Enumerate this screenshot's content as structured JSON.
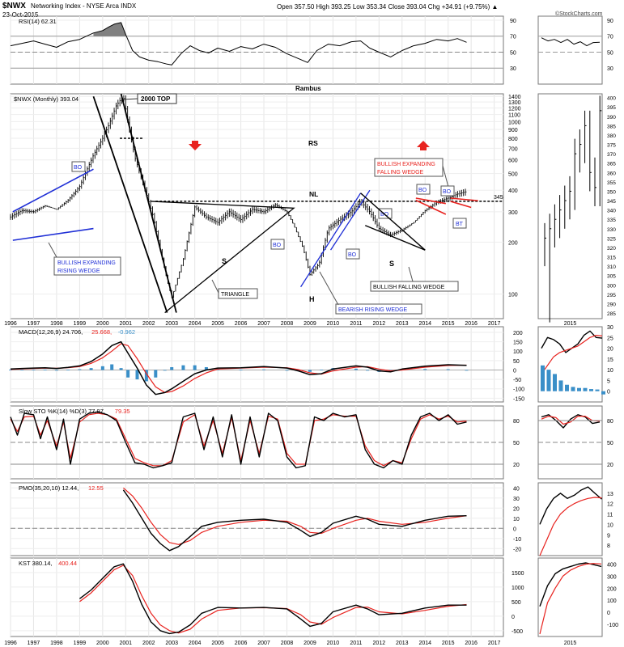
{
  "header": {
    "symbol": "$NWX",
    "name": "Networking Index - NYSE Arca INDX",
    "date": "23-Oct-2015",
    "quote": "Open 357.50  High 393.25  Low 353.34  Close 393.04  Chg +34.91 (+9.75%) ▲",
    "logo": "©StockCharts.com"
  },
  "author": "Rambus",
  "x_axis": {
    "labels": [
      "1996",
      "1997",
      "1998",
      "1999",
      "2000",
      "2001",
      "2002",
      "2003",
      "2004",
      "2005",
      "2006",
      "2007",
      "2008",
      "2009",
      "2010",
      "2011",
      "2012",
      "2013",
      "2014",
      "2015",
      "2016",
      "2017"
    ]
  },
  "right_axis_label": "2015",
  "colors": {
    "price": "#000000",
    "signal": "#e8231f",
    "histogram": "#3a8fc8",
    "blue_line": "#1f2fd6",
    "red_line": "#e8231f",
    "pattern": "#000000",
    "rsi_fill": "#808080"
  },
  "chart_data": [
    {
      "panel": "rsi",
      "type": "line",
      "legend": "RSI(14) 62.31",
      "y_ticks": [
        "90",
        "70",
        "50",
        "30"
      ],
      "ylim": [
        10,
        95
      ],
      "guides": [
        70,
        50,
        30
      ],
      "x": [
        1996.0,
        1996.5,
        1997.0,
        1997.5,
        1998.0,
        1998.5,
        1999.0,
        1999.3,
        1999.6,
        2000.0,
        2000.3,
        2000.5,
        2000.8,
        2001.0,
        2001.3,
        2001.6,
        2002.0,
        2002.4,
        2002.8,
        2003.0,
        2003.4,
        2003.8,
        2004.2,
        2004.6,
        2005.0,
        2005.5,
        2006.0,
        2006.5,
        2007.0,
        2007.5,
        2008.0,
        2008.5,
        2008.9,
        2009.3,
        2009.8,
        2010.3,
        2010.8,
        2011.2,
        2011.6,
        2012.0,
        2012.5,
        2013.0,
        2013.5,
        2014.0,
        2014.5,
        2015.0,
        2015.4,
        2015.8
      ],
      "values": [
        58,
        61,
        64,
        60,
        56,
        63,
        66,
        70,
        74,
        77,
        82,
        85,
        87,
        72,
        52,
        44,
        40,
        38,
        35,
        34,
        48,
        58,
        52,
        49,
        55,
        51,
        57,
        54,
        60,
        56,
        48,
        42,
        37,
        52,
        60,
        58,
        63,
        64,
        55,
        50,
        44,
        52,
        58,
        61,
        66,
        64,
        67,
        62.31
      ]
    },
    {
      "panel": "price",
      "type": "ohlc",
      "legend": "$NWX (Monthly) 393.04",
      "scale": "log",
      "ylim": [
        72,
        1450
      ],
      "y_ticks": [
        "1400",
        "1300",
        "1200",
        "1100",
        "1000",
        "900",
        "800",
        "700",
        "600",
        "500",
        "400",
        "300",
        "200",
        "100"
      ],
      "x": [
        1996.0,
        1996.5,
        1997.0,
        1997.5,
        1998.0,
        1998.5,
        1999.0,
        1999.3,
        1999.6,
        2000.0,
        2000.3,
        2000.6,
        2000.9,
        2001.1,
        2001.4,
        2001.8,
        2002.2,
        2002.5,
        2002.8,
        2003.0,
        2003.5,
        2004.0,
        2004.5,
        2005.0,
        2005.5,
        2006.0,
        2006.5,
        2007.0,
        2007.5,
        2008.0,
        2008.3,
        2008.7,
        2009.0,
        2009.4,
        2009.8,
        2010.3,
        2010.8,
        2011.2,
        2011.6,
        2012.0,
        2012.5,
        2013.0,
        2013.5,
        2014.0,
        2014.5,
        2015.0,
        2015.4,
        2015.8
      ],
      "values": [
        280,
        305,
        300,
        325,
        310,
        350,
        420,
        520,
        640,
        800,
        980,
        1250,
        1400,
        1000,
        620,
        420,
        280,
        180,
        120,
        95,
        160,
        320,
        280,
        260,
        300,
        270,
        310,
        300,
        330,
        300,
        250,
        185,
        130,
        150,
        240,
        270,
        300,
        345,
        300,
        240,
        220,
        235,
        260,
        305,
        340,
        360,
        380,
        393.04
      ]
    },
    {
      "panel": "price_right",
      "type": "ohlc",
      "x_label": "2015",
      "y_ticks": [
        "400",
        "395",
        "390",
        "385",
        "380",
        "375",
        "370",
        "365",
        "360",
        "355",
        "350",
        "345",
        "340",
        "335",
        "330",
        "325",
        "320",
        "315",
        "310",
        "305",
        "300",
        "295",
        "290",
        "285"
      ],
      "ylim": [
        282,
        402
      ],
      "x": [
        0,
        1,
        2,
        3,
        4,
        5,
        6,
        7,
        8,
        9,
        10,
        11
      ],
      "values": [
        325,
        330,
        335,
        340,
        345,
        350,
        370,
        375,
        385,
        360,
        352,
        393
      ]
    },
    {
      "panel": "macd",
      "type": "line",
      "legend": "MACD(12,26,9) 24.706, 25.668, -0.962",
      "legend_parts": [
        "MACD(12,26,9) 24.706,",
        "25.668,",
        "-0.962"
      ],
      "y_ticks": [
        "200",
        "150",
        "100",
        "50",
        "0",
        "-50",
        "-100",
        "-150"
      ],
      "ylim": [
        -170,
        230
      ],
      "x": [
        1996.0,
        1996.5,
        1997.0,
        1997.5,
        1998.0,
        1998.5,
        1999.0,
        1999.5,
        2000.0,
        2000.4,
        2000.8,
        2001.1,
        2001.5,
        2001.9,
        2002.3,
        2002.7,
        2003.0,
        2003.5,
        2004.0,
        2004.5,
        2005.0,
        2006.0,
        2007.0,
        2008.0,
        2008.5,
        2009.0,
        2009.5,
        2010.0,
        2011.0,
        2011.5,
        2012.0,
        2012.5,
        2013.0,
        2014.0,
        2015.0,
        2015.8
      ],
      "values": [
        5,
        8,
        10,
        12,
        8,
        14,
        22,
        45,
        85,
        130,
        150,
        90,
        10,
        -80,
        -130,
        -120,
        -100,
        -60,
        -20,
        0,
        10,
        12,
        18,
        10,
        -5,
        -25,
        -20,
        5,
        22,
        15,
        -5,
        -10,
        5,
        20,
        28,
        24.706
      ],
      "signal": [
        3,
        6,
        8,
        10,
        9,
        12,
        18,
        35,
        65,
        100,
        140,
        130,
        60,
        -20,
        -90,
        -120,
        -115,
        -85,
        -45,
        -15,
        5,
        10,
        15,
        12,
        2,
        -15,
        -22,
        -5,
        15,
        18,
        5,
        -5,
        0,
        15,
        24,
        25.668
      ]
    },
    {
      "panel": "stoch",
      "type": "line",
      "legend": "Slow STO %K(14) %D(3) 77.97, 79.35",
      "legend_parts": [
        "Slow STO %K(14) %D(3) 77.97,",
        "79.35"
      ],
      "y_ticks": [
        "80",
        "50",
        "20"
      ],
      "ylim": [
        0,
        100
      ],
      "guides": [
        80,
        50,
        20
      ],
      "x": [
        1996.0,
        1996.3,
        1996.6,
        1997.0,
        1997.3,
        1997.6,
        1998.0,
        1998.3,
        1998.6,
        1999.0,
        1999.4,
        1999.8,
        2000.2,
        2000.6,
        2001.0,
        2001.4,
        2001.8,
        2002.2,
        2002.6,
        2003.0,
        2003.5,
        2004.0,
        2004.4,
        2004.8,
        2005.2,
        2005.6,
        2006.0,
        2006.4,
        2006.8,
        2007.2,
        2007.6,
        2008.0,
        2008.4,
        2008.8,
        2009.2,
        2009.6,
        2010.0,
        2010.5,
        2011.0,
        2011.4,
        2011.8,
        2012.2,
        2012.6,
        2013.0,
        2013.4,
        2013.8,
        2014.2,
        2014.6,
        2015.0,
        2015.4,
        2015.8
      ],
      "values": [
        85,
        60,
        90,
        88,
        55,
        85,
        40,
        82,
        20,
        82,
        90,
        92,
        88,
        80,
        50,
        22,
        20,
        15,
        18,
        22,
        85,
        90,
        40,
        85,
        30,
        88,
        20,
        85,
        30,
        90,
        80,
        30,
        15,
        18,
        85,
        80,
        90,
        85,
        88,
        40,
        20,
        15,
        25,
        20,
        60,
        85,
        90,
        80,
        88,
        75,
        77.97
      ],
      "signal": [
        82,
        65,
        85,
        86,
        60,
        80,
        45,
        78,
        28,
        78,
        88,
        90,
        88,
        82,
        55,
        28,
        22,
        18,
        18,
        25,
        78,
        88,
        45,
        80,
        35,
        84,
        25,
        80,
        35,
        86,
        82,
        35,
        20,
        20,
        80,
        82,
        88,
        86,
        86,
        45,
        25,
        18,
        25,
        22,
        55,
        82,
        88,
        82,
        86,
        78,
        79.35
      ]
    },
    {
      "panel": "pmo",
      "type": "line",
      "legend": "PMO(35,20,10) 12.44, 12.55",
      "legend_parts": [
        "PMO(35,20,10) 12.44,",
        "12.55"
      ],
      "y_ticks": [
        "40",
        "30",
        "20",
        "10",
        "0",
        "-10",
        "-20"
      ],
      "ylim": [
        -27,
        45
      ],
      "x": [
        2000.9,
        2001.3,
        2001.7,
        2002.1,
        2002.5,
        2002.9,
        2003.3,
        2003.8,
        2004.3,
        2005.0,
        2006.0,
        2007.0,
        2008.0,
        2008.6,
        2009.0,
        2009.5,
        2010.0,
        2011.0,
        2011.5,
        2012.0,
        2013.0,
        2014.0,
        2015.0,
        2015.8
      ],
      "values": [
        38,
        25,
        10,
        -5,
        -15,
        -22,
        -18,
        -8,
        2,
        6,
        8,
        9,
        6,
        -2,
        -8,
        -4,
        5,
        12,
        9,
        4,
        2,
        8,
        12,
        12.44
      ],
      "signal": [
        40,
        32,
        20,
        6,
        -6,
        -14,
        -16,
        -12,
        -4,
        2,
        6,
        8,
        7,
        2,
        -4,
        -5,
        0,
        8,
        10,
        7,
        4,
        6,
        10,
        12.55
      ]
    },
    {
      "panel": "kst",
      "type": "line",
      "legend": "KST 380.14, 400.44",
      "legend_parts": [
        "KST 380.14,",
        "400.44"
      ],
      "y_ticks": [
        "1500",
        "1000",
        "500",
        "0",
        "-500"
      ],
      "ylim": [
        -700,
        2000
      ],
      "x": [
        1999.0,
        1999.5,
        2000.0,
        2000.5,
        2000.9,
        2001.3,
        2001.7,
        2002.1,
        2002.5,
        2002.9,
        2003.3,
        2003.8,
        2004.3,
        2005.0,
        2006.0,
        2007.0,
        2008.0,
        2008.6,
        2009.0,
        2009.5,
        2010.0,
        2011.0,
        2011.5,
        2012.0,
        2013.0,
        2014.0,
        2015.0,
        2015.8
      ],
      "values": [
        600,
        900,
        1300,
        1700,
        1800,
        1200,
        400,
        -200,
        -500,
        -600,
        -550,
        -300,
        100,
        300,
        280,
        300,
        250,
        -100,
        -350,
        -250,
        150,
        380,
        250,
        50,
        100,
        280,
        380,
        380.14
      ],
      "signal": [
        500,
        800,
        1200,
        1600,
        1750,
        1400,
        700,
        100,
        -300,
        -500,
        -580,
        -450,
        -100,
        200,
        280,
        290,
        260,
        50,
        -200,
        -280,
        -50,
        300,
        310,
        150,
        80,
        200,
        340,
        400.44
      ]
    }
  ],
  "annotations": {
    "top_2000": "2000 TOP",
    "rs": "RS",
    "nl": "NL",
    "level_345": "345",
    "s1": "S",
    "s2": "S",
    "h": "H",
    "triangle": "TRIANGLE",
    "bullish_expanding_rising_wedge": [
      "BULLISH EXPANDING",
      "RISING WEDGE"
    ],
    "bearish_rising_wedge": "BEARISH RISING WEDGE",
    "bullish_falling_wedge": "BULLISH FALLING WEDGE",
    "bullish_expanding_falling_wedge": [
      "BULLISH EXPANDING",
      "FALLING WEDGE"
    ],
    "bo": "BO",
    "bt": "BT"
  }
}
